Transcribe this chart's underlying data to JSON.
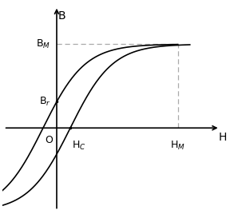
{
  "background_color": "#ffffff",
  "curve_color": "#000000",
  "dashed_color": "#aaaaaa",
  "text_color": "#000000",
  "xlim": [
    -1.8,
    5.5
  ],
  "ylim": [
    -3.2,
    4.8
  ],
  "Br": 1.0,
  "Hc": 0.45,
  "Hm": 4.0,
  "Bm": 3.2,
  "axis_origin_x": 0.0,
  "axis_origin_y": 0.0,
  "font_size": 9
}
